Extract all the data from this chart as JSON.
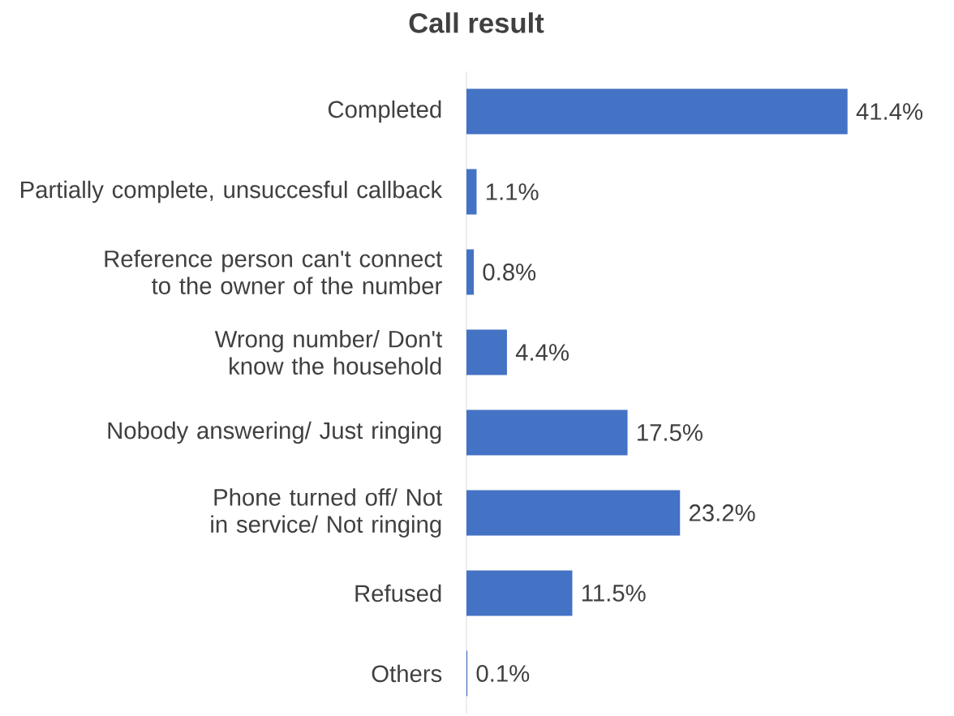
{
  "chart_data": {
    "type": "bar",
    "orientation": "horizontal",
    "title": "Call result",
    "categories": [
      "Completed",
      "Partially complete, unsuccesful callback",
      "Reference person can't connect to the owner of the number",
      "Wrong number/ Don't know the household",
      "Nobody answering/ Just ringing",
      "Phone turned off/ Not in service/ Not ringing",
      "Refused",
      "Others"
    ],
    "values": [
      41.4,
      1.1,
      0.8,
      4.4,
      17.5,
      23.2,
      11.5,
      0.1
    ],
    "value_labels": [
      "41.4%",
      "1.1%",
      "0.8%",
      "4.4%",
      "17.5%",
      "23.2%",
      "11.5%",
      "0.1%"
    ],
    "color": "#4472c4"
  }
}
